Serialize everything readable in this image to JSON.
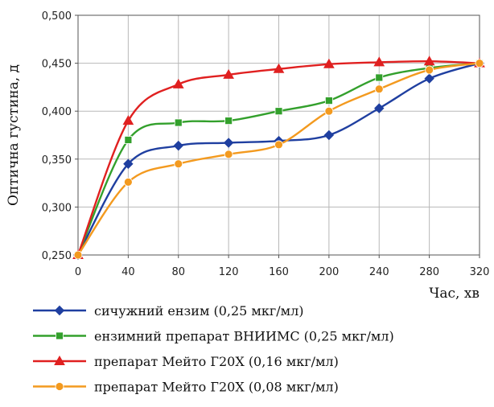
{
  "chart_data": {
    "type": "line",
    "xlabel": "Час, хв",
    "ylabel": "Оптична густина, д",
    "x": [
      0,
      40,
      80,
      120,
      160,
      200,
      240,
      280,
      320
    ],
    "x_ticks": [
      "0",
      "40",
      "80",
      "120",
      "160",
      "200",
      "240",
      "280",
      "320"
    ],
    "y_ticks": [
      "0,250",
      "0,300",
      "0,350",
      "0,400",
      "0,450",
      "0,500"
    ],
    "xlim": [
      0,
      320
    ],
    "ylim": [
      0.25,
      0.5
    ],
    "grid": true,
    "legend_position": "bottom",
    "series": [
      {
        "name": "сичужний ензим (0,25 мкг/мл)",
        "color": "#1f3fa0",
        "marker": "diamond",
        "values": [
          0.25,
          0.345,
          0.364,
          0.367,
          0.369,
          0.375,
          0.403,
          0.434,
          0.45
        ]
      },
      {
        "name": "ензимний препарат ВНИИМС (0,25 мкг/мл)",
        "color": "#33a02c",
        "marker": "square",
        "values": [
          0.25,
          0.37,
          0.388,
          0.39,
          0.4,
          0.411,
          0.435,
          0.445,
          0.45
        ]
      },
      {
        "name": "препарат Мейто Г20Х (0,16 мкг/мл)",
        "color": "#e02020",
        "marker": "triangle",
        "values": [
          0.25,
          0.39,
          0.428,
          0.438,
          0.444,
          0.449,
          0.451,
          0.452,
          0.45
        ]
      },
      {
        "name": "препарат Мейто Г20Х (0,08 мкг/мл)",
        "color": "#f39a1f",
        "marker": "circle",
        "values": [
          0.25,
          0.326,
          0.345,
          0.355,
          0.365,
          0.4,
          0.423,
          0.443,
          0.45
        ]
      }
    ]
  }
}
